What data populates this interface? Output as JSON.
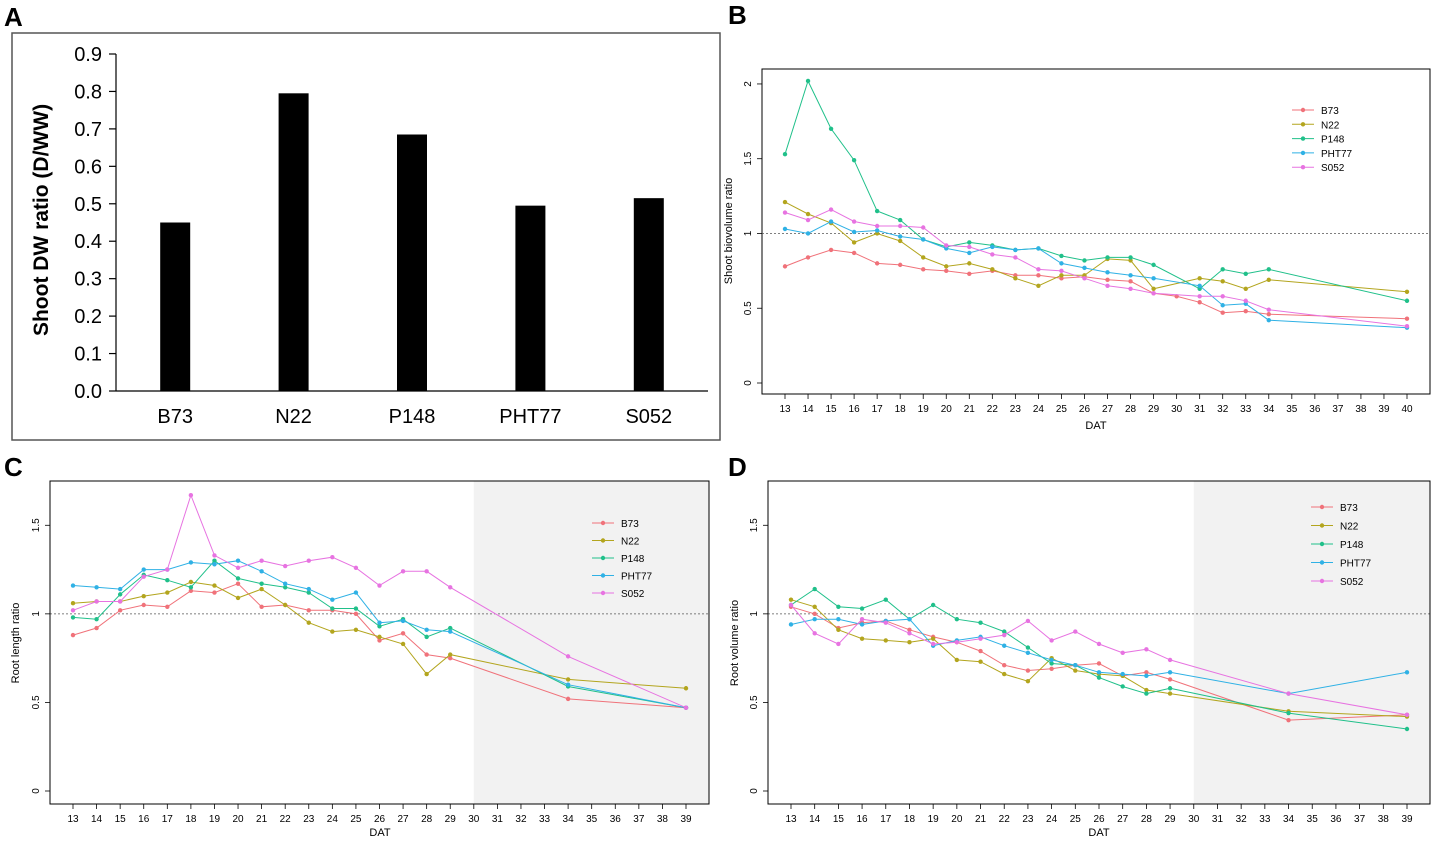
{
  "colors": {
    "B73": "#f0727a",
    "N22": "#b3a51e",
    "P148": "#20c08a",
    "PHT77": "#2fb1e5",
    "S052": "#e773e1",
    "bar": "#000000",
    "shade": "#f2f2f2"
  },
  "chart_data": [
    {
      "panel": "A",
      "type": "bar",
      "categories": [
        "B73",
        "N22",
        "P148",
        "PHT77",
        "S052"
      ],
      "values": [
        0.45,
        0.795,
        0.685,
        0.495,
        0.515
      ],
      "ylabel": "Shoot DW ratio (D/WW)",
      "ylim": [
        0,
        0.9
      ],
      "yticks": [
        "0.0",
        "0.1",
        "0.2",
        "0.3",
        "0.4",
        "0.5",
        "0.6",
        "0.7",
        "0.8",
        "0.9"
      ]
    },
    {
      "panel": "B",
      "type": "line",
      "ylabel": "Shoot biovolume ratio",
      "xlabel": "DAT",
      "xticks": [
        "13",
        "14",
        "15",
        "16",
        "17",
        "18",
        "19",
        "20",
        "21",
        "22",
        "23",
        "24",
        "25",
        "26",
        "27",
        "28",
        "29",
        "30",
        "31",
        "32",
        "33",
        "34",
        "35",
        "36",
        "37",
        "38",
        "39",
        "40"
      ],
      "ylim": [
        0,
        2.1
      ],
      "yticks": [
        "0",
        "0.5",
        "1",
        "1.5",
        "2"
      ],
      "refline": 1,
      "legend": "top-right",
      "series": [
        {
          "name": "B73",
          "x": [
            13,
            14,
            15,
            16,
            17,
            18,
            19,
            20,
            21,
            22,
            23,
            24,
            25,
            26,
            27,
            28,
            29,
            30,
            31,
            32,
            33,
            34,
            40
          ],
          "values": [
            0.78,
            0.84,
            0.89,
            0.87,
            0.8,
            0.79,
            0.76,
            0.75,
            0.73,
            0.75,
            0.72,
            0.72,
            0.7,
            0.71,
            0.69,
            0.68,
            0.6,
            0.58,
            0.54,
            0.47,
            0.48,
            0.46,
            0.43
          ]
        },
        {
          "name": "N22",
          "x": [
            13,
            14,
            15,
            16,
            17,
            18,
            19,
            20,
            21,
            22,
            23,
            24,
            25,
            26,
            27,
            28,
            29,
            31,
            32,
            33,
            34,
            40
          ],
          "values": [
            1.21,
            1.13,
            1.07,
            0.94,
            1.0,
            0.95,
            0.84,
            0.78,
            0.8,
            0.76,
            0.7,
            0.65,
            0.72,
            0.72,
            0.83,
            0.82,
            0.63,
            0.7,
            0.68,
            0.63,
            0.69,
            0.61
          ]
        },
        {
          "name": "P148",
          "x": [
            13,
            14,
            15,
            16,
            17,
            18,
            19,
            20,
            21,
            22,
            23,
            24,
            25,
            26,
            27,
            28,
            29,
            31,
            32,
            33,
            34,
            40
          ],
          "values": [
            1.53,
            2.02,
            1.7,
            1.49,
            1.15,
            1.09,
            0.96,
            0.91,
            0.94,
            0.92,
            0.89,
            0.9,
            0.85,
            0.82,
            0.84,
            0.84,
            0.79,
            0.63,
            0.76,
            0.73,
            0.76,
            0.55
          ]
        },
        {
          "name": "PHT77",
          "x": [
            13,
            14,
            15,
            16,
            17,
            18,
            19,
            20,
            21,
            22,
            23,
            24,
            25,
            26,
            27,
            28,
            29,
            31,
            32,
            33,
            34,
            40
          ],
          "values": [
            1.03,
            1.0,
            1.08,
            1.01,
            1.02,
            0.98,
            0.96,
            0.9,
            0.87,
            0.91,
            0.89,
            0.9,
            0.8,
            0.77,
            0.74,
            0.72,
            0.7,
            0.65,
            0.52,
            0.53,
            0.42,
            0.37
          ]
        },
        {
          "name": "S052",
          "x": [
            13,
            14,
            15,
            16,
            17,
            18,
            19,
            20,
            21,
            22,
            23,
            24,
            25,
            26,
            27,
            28,
            29,
            31,
            32,
            33,
            34,
            40
          ],
          "values": [
            1.14,
            1.09,
            1.16,
            1.08,
            1.05,
            1.05,
            1.04,
            0.92,
            0.91,
            0.86,
            0.84,
            0.76,
            0.75,
            0.7,
            0.65,
            0.63,
            0.6,
            0.58,
            0.58,
            0.55,
            0.49,
            0.38
          ]
        }
      ]
    },
    {
      "panel": "C",
      "type": "line",
      "ylabel": "Root length ratio",
      "xlabel": "DAT",
      "xticks": [
        "13",
        "14",
        "15",
        "16",
        "17",
        "18",
        "19",
        "20",
        "21",
        "22",
        "23",
        "24",
        "25",
        "26",
        "27",
        "28",
        "29",
        "30",
        "31",
        "32",
        "33",
        "34",
        "35",
        "36",
        "37",
        "38",
        "39"
      ],
      "ylim": [
        0,
        1.75
      ],
      "yticks": [
        "0",
        "0.5",
        "1",
        "1.5"
      ],
      "refline": 1,
      "shaded_from": 30,
      "shaded_to": 39,
      "legend": "top-right",
      "series": [
        {
          "name": "B73",
          "x": [
            13,
            14,
            15,
            16,
            17,
            18,
            19,
            20,
            21,
            22,
            23,
            24,
            25,
            26,
            27,
            28,
            29,
            34,
            39
          ],
          "values": [
            0.88,
            0.92,
            1.02,
            1.05,
            1.04,
            1.13,
            1.12,
            1.17,
            1.04,
            1.05,
            1.02,
            1.02,
            1.0,
            0.85,
            0.89,
            0.77,
            0.75,
            0.52,
            0.47
          ]
        },
        {
          "name": "N22",
          "x": [
            13,
            14,
            15,
            16,
            17,
            18,
            19,
            20,
            21,
            22,
            23,
            24,
            25,
            26,
            27,
            28,
            29,
            34,
            39
          ],
          "values": [
            1.06,
            1.07,
            1.07,
            1.1,
            1.12,
            1.18,
            1.16,
            1.09,
            1.14,
            1.05,
            0.95,
            0.9,
            0.91,
            0.87,
            0.83,
            0.66,
            0.77,
            0.63,
            0.58
          ]
        },
        {
          "name": "P148",
          "x": [
            13,
            14,
            15,
            16,
            17,
            18,
            19,
            20,
            21,
            22,
            23,
            24,
            25,
            26,
            27,
            28,
            29,
            34,
            39
          ],
          "values": [
            0.98,
            0.97,
            1.11,
            1.22,
            1.19,
            1.15,
            1.3,
            1.2,
            1.17,
            1.15,
            1.12,
            1.03,
            1.03,
            0.93,
            0.97,
            0.87,
            0.92,
            0.59,
            0.47
          ]
        },
        {
          "name": "PHT77",
          "x": [
            13,
            14,
            15,
            16,
            17,
            18,
            19,
            20,
            21,
            22,
            23,
            24,
            25,
            26,
            27,
            28,
            29,
            34,
            39
          ],
          "values": [
            1.16,
            1.15,
            1.14,
            1.25,
            1.25,
            1.29,
            1.28,
            1.3,
            1.24,
            1.17,
            1.14,
            1.08,
            1.12,
            0.95,
            0.96,
            0.91,
            0.9,
            0.6,
            0.47
          ]
        },
        {
          "name": "S052",
          "x": [
            13,
            14,
            15,
            16,
            17,
            18,
            19,
            20,
            21,
            22,
            23,
            24,
            25,
            26,
            27,
            28,
            29,
            34,
            39
          ],
          "values": [
            1.02,
            1.07,
            1.07,
            1.21,
            1.25,
            1.67,
            1.33,
            1.26,
            1.3,
            1.27,
            1.3,
            1.32,
            1.26,
            1.16,
            1.24,
            1.24,
            1.15,
            0.76,
            0.47
          ]
        }
      ]
    },
    {
      "panel": "D",
      "type": "line",
      "ylabel": "Root volume ratio",
      "xlabel": "DAT",
      "xticks": [
        "13",
        "14",
        "15",
        "16",
        "17",
        "18",
        "19",
        "20",
        "21",
        "22",
        "23",
        "24",
        "25",
        "26",
        "27",
        "28",
        "29",
        "30",
        "31",
        "32",
        "33",
        "34",
        "35",
        "36",
        "37",
        "38",
        "39"
      ],
      "ylim": [
        0,
        1.75
      ],
      "yticks": [
        "0",
        "0.5",
        "1",
        "1.5"
      ],
      "refline": 1,
      "shaded_from": 30,
      "shaded_to": 39,
      "legend": "top-right",
      "series": [
        {
          "name": "B73",
          "x": [
            13,
            14,
            15,
            16,
            17,
            18,
            19,
            20,
            21,
            22,
            23,
            24,
            25,
            26,
            27,
            28,
            29,
            34,
            39
          ],
          "values": [
            1.04,
            1.0,
            0.92,
            0.95,
            0.96,
            0.91,
            0.87,
            0.84,
            0.79,
            0.71,
            0.68,
            0.69,
            0.71,
            0.72,
            0.65,
            0.67,
            0.63,
            0.4,
            0.43
          ]
        },
        {
          "name": "N22",
          "x": [
            13,
            14,
            15,
            16,
            17,
            18,
            19,
            20,
            21,
            22,
            23,
            24,
            25,
            26,
            27,
            28,
            29,
            34,
            39
          ],
          "values": [
            1.08,
            1.04,
            0.91,
            0.86,
            0.85,
            0.84,
            0.86,
            0.74,
            0.73,
            0.66,
            0.62,
            0.75,
            0.68,
            0.66,
            0.65,
            0.57,
            0.55,
            0.45,
            0.42
          ]
        },
        {
          "name": "P148",
          "x": [
            13,
            14,
            15,
            16,
            17,
            18,
            19,
            20,
            21,
            22,
            23,
            24,
            25,
            26,
            27,
            28,
            29,
            34,
            39
          ],
          "values": [
            1.05,
            1.14,
            1.04,
            1.03,
            1.08,
            0.97,
            1.05,
            0.97,
            0.95,
            0.9,
            0.81,
            0.72,
            0.71,
            0.64,
            0.59,
            0.55,
            0.58,
            0.44,
            0.35
          ]
        },
        {
          "name": "PHT77",
          "x": [
            13,
            14,
            15,
            16,
            17,
            18,
            19,
            20,
            21,
            22,
            23,
            24,
            25,
            26,
            27,
            28,
            29,
            34,
            39
          ],
          "values": [
            0.94,
            0.97,
            0.97,
            0.94,
            0.96,
            0.97,
            0.82,
            0.85,
            0.87,
            0.82,
            0.78,
            0.74,
            0.71,
            0.67,
            0.66,
            0.65,
            0.67,
            0.55,
            0.67
          ]
        },
        {
          "name": "S052",
          "x": [
            13,
            14,
            15,
            16,
            17,
            18,
            19,
            20,
            21,
            22,
            23,
            24,
            25,
            26,
            27,
            28,
            29,
            34,
            39
          ],
          "values": [
            1.05,
            0.89,
            0.83,
            0.97,
            0.95,
            0.89,
            0.83,
            0.84,
            0.86,
            0.88,
            0.96,
            0.85,
            0.9,
            0.83,
            0.78,
            0.8,
            0.74,
            0.55,
            0.43
          ]
        }
      ]
    }
  ]
}
